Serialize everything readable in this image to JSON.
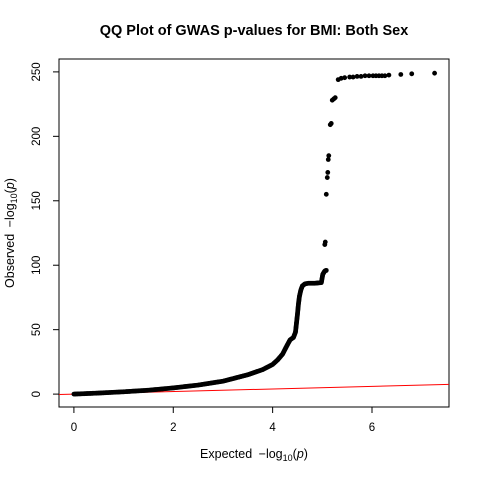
{
  "chart_data": {
    "type": "scatter",
    "title": "QQ Plot of GWAS p-values for BMI: Both Sex",
    "xlabel": {
      "prefix": "Expected ",
      "minus": "−",
      "log": "log",
      "sub": "10",
      "open": "(",
      "var": "p",
      "close": ")"
    },
    "ylabel": {
      "prefix": "Observed ",
      "minus": "−",
      "log": "log",
      "sub": "10",
      "open": "(",
      "var": "p",
      "close": ")"
    },
    "xlim": [
      -0.3,
      7.55
    ],
    "ylim": [
      -10,
      260
    ],
    "xticks": [
      0,
      2,
      4,
      6
    ],
    "yticks": [
      0,
      50,
      100,
      150,
      200,
      250
    ],
    "grid": false,
    "point_color": "#000000",
    "reference_line": {
      "intercept": 0,
      "slope": 1,
      "color": "#ff0000"
    },
    "curve_points": [
      [
        0,
        0
      ],
      [
        0.5,
        0.8
      ],
      [
        1.0,
        1.8
      ],
      [
        1.5,
        3.0
      ],
      [
        2.0,
        4.8
      ],
      [
        2.5,
        7.0
      ],
      [
        3.0,
        10.0
      ],
      [
        3.5,
        15.0
      ],
      [
        3.8,
        19.0
      ],
      [
        4.0,
        23.0
      ],
      [
        4.1,
        26.5
      ],
      [
        4.2,
        31.0
      ],
      [
        4.28,
        37.0
      ],
      [
        4.35,
        42.0
      ],
      [
        4.42,
        44.0
      ],
      [
        4.46,
        48.0
      ],
      [
        4.48,
        55.0
      ],
      [
        4.5,
        62.0
      ],
      [
        4.52,
        70.0
      ],
      [
        4.54,
        76.0
      ],
      [
        4.57,
        81.0
      ],
      [
        4.6,
        84.0
      ],
      [
        4.65,
        85.5
      ],
      [
        4.72,
        86.0
      ],
      [
        4.85,
        86.0
      ],
      [
        4.98,
        86.5
      ],
      [
        5.01,
        93.0
      ],
      [
        5.05,
        95.5
      ],
      [
        5.08,
        96.0
      ]
    ],
    "scatter_points": [
      [
        5.05,
        116.0
      ],
      [
        5.06,
        118.0
      ],
      [
        5.08,
        155.0
      ],
      [
        5.1,
        168.0
      ],
      [
        5.11,
        172.0
      ],
      [
        5.12,
        182.0
      ],
      [
        5.13,
        185.0
      ],
      [
        5.16,
        209.0
      ],
      [
        5.18,
        210.0
      ],
      [
        5.2,
        228.0
      ],
      [
        5.23,
        229.0
      ],
      [
        5.26,
        230.0
      ],
      [
        5.32,
        244.0
      ],
      [
        5.38,
        245.0
      ],
      [
        5.45,
        245.5
      ],
      [
        5.55,
        246.0
      ],
      [
        5.62,
        246.0
      ],
      [
        5.7,
        246.5
      ],
      [
        5.78,
        246.5
      ],
      [
        5.86,
        247.0
      ],
      [
        5.94,
        247.0
      ],
      [
        6.02,
        247.0
      ],
      [
        6.08,
        247.0
      ],
      [
        6.14,
        247.0
      ],
      [
        6.2,
        247.0
      ],
      [
        6.26,
        247.0
      ],
      [
        6.34,
        247.5
      ],
      [
        6.58,
        248.0
      ],
      [
        6.8,
        248.5
      ],
      [
        7.26,
        249.0
      ]
    ]
  }
}
